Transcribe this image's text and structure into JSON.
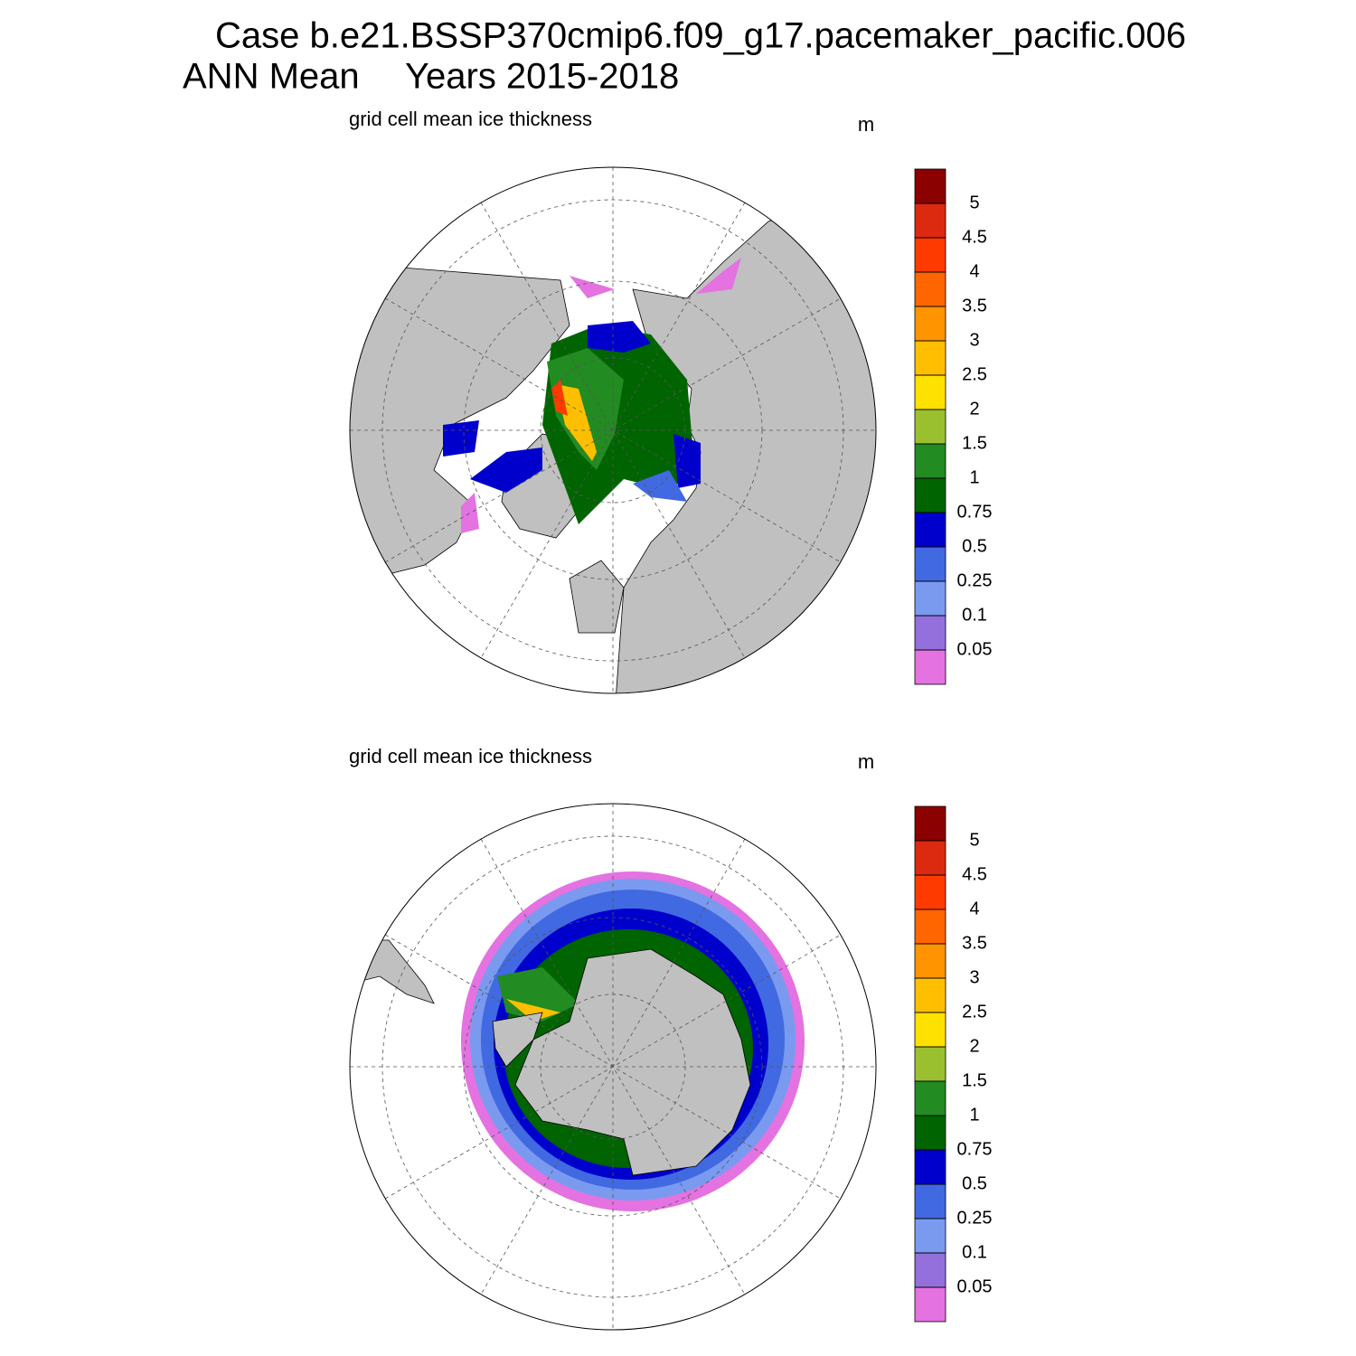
{
  "header": {
    "title": "Case b.e21.BSSP370cmip6.f09_g17.pacemaker_pacific.006",
    "subtitle_left": "ANN Mean",
    "subtitle_right": "Years 2015-2018"
  },
  "panels": [
    {
      "title": "grid cell mean ice thickness",
      "units": "m",
      "levels": [
        0.05,
        0.1,
        0.25,
        0.5,
        0.75,
        1,
        1.5,
        2,
        2.5,
        3,
        3.5,
        4,
        4.5,
        5
      ],
      "colors": [
        "#e472e0",
        "#9370db",
        "#7a9af0",
        "#4169e1",
        "#0000cd",
        "#006400",
        "#228b22",
        "#9ac030",
        "#ffe100",
        "#ffbf00",
        "#ff9400",
        "#ff6600",
        "#ff3a00",
        "#dc2a10",
        "#8b0000"
      ]
    },
    {
      "title": "grid cell mean ice thickness",
      "units": "m",
      "levels": [
        0.05,
        0.1,
        0.25,
        0.5,
        0.75,
        1,
        1.5,
        2,
        2.5,
        3,
        3.5,
        4,
        4.5,
        5
      ],
      "colors": [
        "#e472e0",
        "#9370db",
        "#7a9af0",
        "#4169e1",
        "#0000cd",
        "#006400",
        "#228b22",
        "#9ac030",
        "#ffe100",
        "#ffbf00",
        "#ff9400",
        "#ff6600",
        "#ff3a00",
        "#dc2a10",
        "#8b0000"
      ]
    }
  ]
}
